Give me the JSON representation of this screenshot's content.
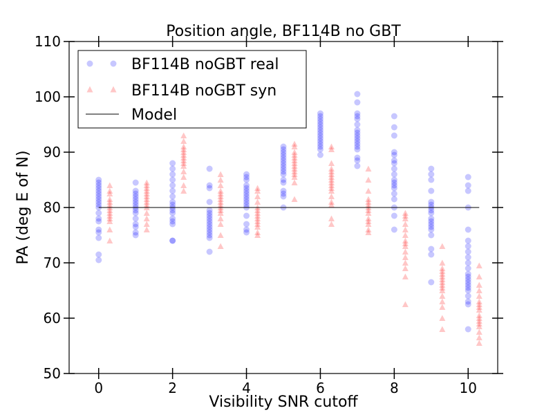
{
  "chart_data": {
    "type": "scatter",
    "title": "Position angle, BF114B no GBT",
    "xlabel": "Visibility SNR cutoff",
    "ylabel": "PA (deg E of N)",
    "xlim": [
      -0.8,
      10.8
    ],
    "ylim": [
      50,
      110
    ],
    "xticks": [
      0,
      2,
      4,
      6,
      8,
      10
    ],
    "xtick_labels": [
      "0",
      "2",
      "4",
      "6",
      "8",
      "10"
    ],
    "yticks": [
      50,
      60,
      70,
      80,
      90,
      100,
      110
    ],
    "ytick_labels": [
      "50",
      "60",
      "70",
      "80",
      "90",
      "100",
      "110"
    ],
    "legend_position": "upper-left",
    "series": [
      {
        "name": "BF114B noGBT real",
        "marker": "circle",
        "color": "#0000ff",
        "alpha": 0.22,
        "x": [
          0,
          1,
          2,
          3,
          4,
          5,
          6,
          7,
          8,
          9,
          10
        ],
        "y_values": [
          [
            70.5,
            71.5,
            74.5,
            75.5,
            76.0,
            77.5,
            78.0,
            79.0,
            80.0,
            80.5,
            81.0,
            81.5,
            82.0,
            82.5,
            83.0,
            83.5,
            84.0,
            84.5,
            85.0
          ],
          [
            75.0,
            75.5,
            76.5,
            77.0,
            78.0,
            79.0,
            79.5,
            80.0,
            80.5,
            81.0,
            81.5,
            82.0,
            82.5,
            83.0,
            84.5
          ],
          [
            74.0,
            74.0,
            77.0,
            77.5,
            78.0,
            79.0,
            79.5,
            80.0,
            80.5,
            81.0,
            82.0,
            83.0,
            84.0,
            85.0,
            86.0,
            87.0,
            88.0
          ],
          [
            72.0,
            74.5,
            75.0,
            75.5,
            76.0,
            76.5,
            77.0,
            77.5,
            78.0,
            78.5,
            79.0,
            79.5,
            81.0,
            83.5,
            84.0,
            87.0
          ],
          [
            75.5,
            76.0,
            77.0,
            78.5,
            80.0,
            80.5,
            81.0,
            81.5,
            82.0,
            82.5,
            83.0,
            83.5,
            84.0,
            85.0,
            85.5,
            86.0
          ],
          [
            80.0,
            82.0,
            82.5,
            83.0,
            84.5,
            85.0,
            86.0,
            86.5,
            87.0,
            87.5,
            88.0,
            88.5,
            89.0,
            89.5,
            90.0,
            90.5,
            91.0
          ],
          [
            89.5,
            90.5,
            91.0,
            91.5,
            92.0,
            92.5,
            93.0,
            93.5,
            94.0,
            94.5,
            95.0,
            95.5,
            96.0,
            96.5,
            97.0
          ],
          [
            87.5,
            88.5,
            89.0,
            90.5,
            91.0,
            91.5,
            92.0,
            92.5,
            93.0,
            93.5,
            94.0,
            95.0,
            96.0,
            96.5,
            97.0,
            99.0,
            100.5
          ],
          [
            76.0,
            78.5,
            80.0,
            81.5,
            82.5,
            83.5,
            84.0,
            84.5,
            85.0,
            86.0,
            87.0,
            88.0,
            88.5,
            89.5,
            90.0,
            93.0,
            94.5,
            96.5
          ],
          [
            66.5,
            71.5,
            72.5,
            75.0,
            76.0,
            76.5,
            77.0,
            77.5,
            78.0,
            79.0,
            79.5,
            80.0,
            80.5,
            81.0,
            83.0,
            85.0,
            86.0,
            87.0
          ],
          [
            58.0,
            62.5,
            63.0,
            64.0,
            65.0,
            65.5,
            66.0,
            66.5,
            67.0,
            67.5,
            68.0,
            69.0,
            70.0,
            71.0,
            72.0,
            73.0,
            74.0,
            76.0,
            80.0,
            83.0,
            84.0,
            85.5
          ]
        ]
      },
      {
        "name": "BF114B noGBT syn",
        "marker": "triangle",
        "color": "#ff0000",
        "alpha": 0.22,
        "x": [
          0.3,
          1.3,
          2.3,
          3.3,
          4.3,
          5.3,
          6.3,
          7.3,
          8.3,
          9.3,
          10.3
        ],
        "y_values": [
          [
            74.0,
            76.0,
            77.5,
            78.0,
            78.5,
            79.0,
            79.5,
            80.0,
            80.5,
            81.0,
            81.5,
            82.5,
            83.0,
            84.0
          ],
          [
            76.0,
            77.0,
            78.0,
            79.0,
            80.0,
            80.5,
            81.0,
            81.5,
            82.0,
            82.5,
            83.0,
            83.5,
            84.0,
            84.5
          ],
          [
            83.0,
            84.0,
            85.5,
            86.5,
            87.5,
            88.0,
            88.5,
            89.0,
            89.5,
            90.0,
            90.5,
            91.0,
            92.0,
            93.0
          ],
          [
            73.0,
            75.0,
            77.0,
            78.0,
            79.0,
            79.5,
            80.0,
            80.5,
            81.0,
            81.5,
            82.0,
            82.5,
            83.0,
            84.0,
            85.0,
            86.0
          ],
          [
            75.0,
            75.5,
            76.5,
            77.0,
            77.5,
            78.0,
            78.5,
            79.0,
            79.5,
            80.0,
            81.0,
            82.0,
            83.0,
            83.5
          ],
          [
            81.5,
            84.5,
            85.5,
            86.0,
            86.5,
            87.0,
            87.5,
            88.0,
            88.5,
            89.0,
            89.5,
            90.0,
            91.0,
            91.5
          ],
          [
            77.0,
            78.0,
            80.5,
            81.0,
            82.0,
            83.0,
            83.5,
            84.0,
            84.5,
            85.0,
            85.5,
            86.0,
            86.5,
            87.0,
            88.0,
            90.5,
            91.0
          ],
          [
            75.5,
            76.0,
            77.0,
            77.5,
            78.0,
            79.0,
            79.5,
            80.0,
            80.5,
            81.0,
            81.5,
            83.0,
            85.0,
            87.0
          ],
          [
            62.5,
            67.5,
            69.0,
            70.0,
            71.0,
            72.0,
            73.0,
            73.5,
            74.0,
            75.0,
            76.0,
            77.0,
            78.0,
            78.5,
            79.0
          ],
          [
            58.0,
            60.0,
            62.0,
            63.0,
            64.0,
            65.0,
            65.5,
            66.0,
            66.5,
            67.0,
            67.5,
            68.0,
            68.5,
            69.0,
            70.0,
            73.0
          ],
          [
            55.5,
            56.5,
            57.5,
            58.5,
            59.0,
            59.5,
            60.0,
            60.5,
            61.5,
            62.0,
            62.5,
            63.0,
            64.0,
            65.0,
            66.0,
            67.5,
            69.5
          ]
        ]
      },
      {
        "name": "Model",
        "marker": "line",
        "color": "#000000",
        "x": [
          0,
          10.3
        ],
        "y": [
          80,
          80
        ]
      }
    ]
  }
}
